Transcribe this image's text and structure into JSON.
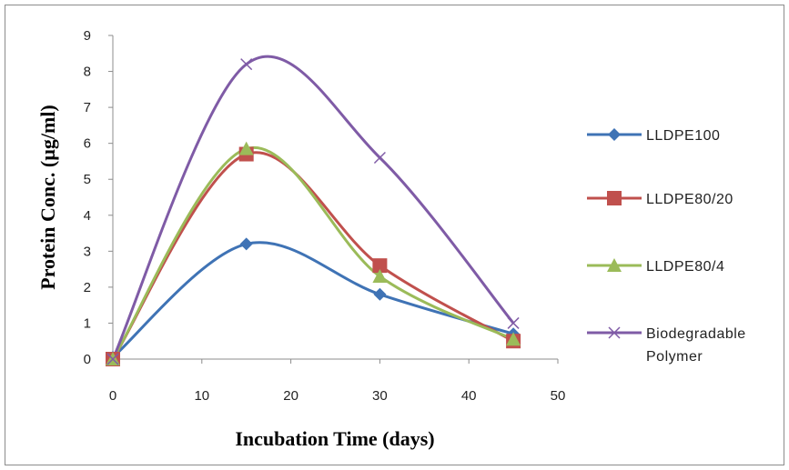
{
  "chart_data": {
    "type": "line",
    "xlabel": "Incubation Time (days)",
    "ylabel": "Protein Conc. (µg/ml)",
    "xlim": [
      0,
      50
    ],
    "ylim": [
      0,
      9
    ],
    "x_ticks": [
      "0",
      "10",
      "20",
      "30",
      "40",
      "50"
    ],
    "y_ticks": [
      "0",
      "1",
      "2",
      "3",
      "4",
      "5",
      "6",
      "7",
      "8",
      "9"
    ],
    "grid": false,
    "legend_position": "right",
    "smoothed": true,
    "x": [
      0,
      15,
      30,
      45
    ],
    "series": [
      {
        "name": "LLDPE100",
        "values": [
          0.05,
          3.2,
          1.8,
          0.7
        ],
        "color": "#3F73B5",
        "marker": "diamond"
      },
      {
        "name": "LLDPE80/20",
        "values": [
          0.0,
          5.7,
          2.6,
          0.5
        ],
        "color": "#C0504D",
        "marker": "square"
      },
      {
        "name": "LLDPE80/4",
        "values": [
          0.0,
          5.85,
          2.3,
          0.55
        ],
        "color": "#9BBB59",
        "marker": "triangle"
      },
      {
        "name": "Biodegradable Polymer",
        "name_lines": [
          "Biodegradable",
          "Polymer"
        ],
        "values": [
          0.0,
          8.2,
          5.6,
          1.0
        ],
        "color": "#7F5BA6",
        "marker": "x"
      }
    ]
  }
}
